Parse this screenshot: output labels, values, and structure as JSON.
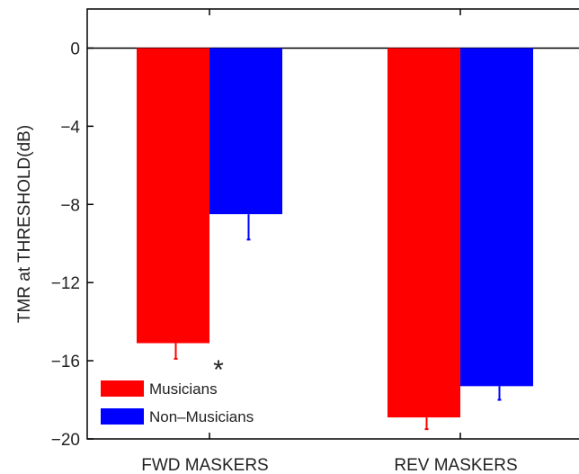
{
  "chart_data": {
    "type": "bar",
    "categories": [
      "FWD MASKERS",
      "REV MASKERS"
    ],
    "series": [
      {
        "name": "Musicians",
        "color": "#ff0000",
        "values": [
          -15.1,
          -18.9
        ],
        "errors": [
          0.8,
          0.6
        ]
      },
      {
        "name": "Non–Musicians",
        "color": "#0000ff",
        "values": [
          -8.5,
          -17.3
        ],
        "errors": [
          1.3,
          0.7
        ]
      }
    ],
    "ylabel": "TMR at THRESHOLD(dB)",
    "ylim": [
      -20,
      2
    ],
    "yticks": [
      0,
      -4,
      -8,
      -12,
      -16,
      -20
    ],
    "legend_position": "bottom-left",
    "annotations": [
      {
        "text": "*",
        "category": "FWD MASKERS",
        "y": -16
      }
    ],
    "grid": false
  }
}
